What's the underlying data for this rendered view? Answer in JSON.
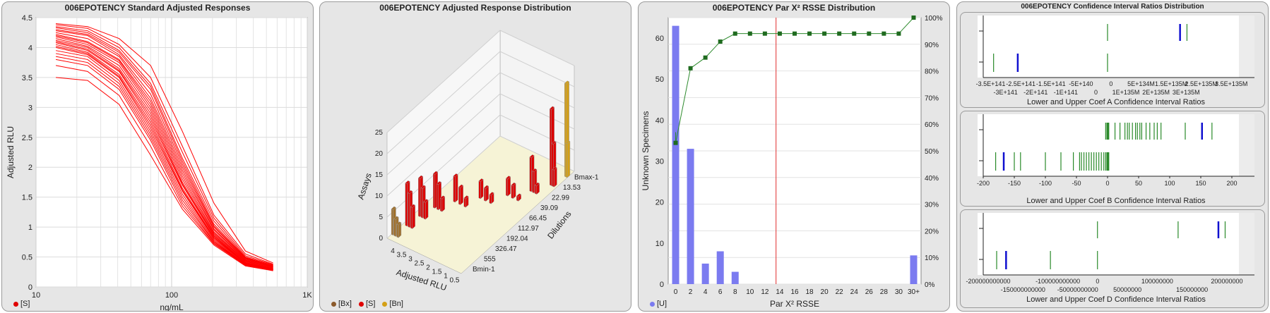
{
  "chart_data": [
    {
      "type": "line",
      "title": "006EPOTENCY Standard Adjusted Responses",
      "xlabel": "ng/mL",
      "ylabel": "Adjusted RLU",
      "xscale": "log",
      "xlim": [
        10,
        1000
      ],
      "ylim": [
        0,
        4.5
      ],
      "x_ticks": [
        "10",
        "100",
        "1K"
      ],
      "y_ticks": [
        "0",
        "0.5",
        "1",
        "1.5",
        "2",
        "2.5",
        "3",
        "3.5",
        "4",
        "4.5"
      ],
      "x": [
        14,
        24,
        41,
        70,
        120,
        205,
        350,
        560
      ],
      "series_color": "#ff0000",
      "legend": [
        "[S]"
      ],
      "series": [
        {
          "values": [
            4.4,
            4.35,
            4.15,
            3.7,
            2.6,
            1.4,
            0.6,
            0.4
          ]
        },
        {
          "values": [
            4.38,
            4.32,
            4.05,
            3.5,
            2.35,
            1.2,
            0.55,
            0.38
          ]
        },
        {
          "values": [
            4.35,
            4.28,
            4.0,
            3.4,
            2.25,
            1.15,
            0.52,
            0.37
          ]
        },
        {
          "values": [
            4.33,
            4.25,
            3.95,
            3.35,
            2.15,
            1.1,
            0.5,
            0.36
          ]
        },
        {
          "values": [
            4.3,
            4.22,
            3.92,
            3.3,
            2.1,
            1.05,
            0.49,
            0.35
          ]
        },
        {
          "values": [
            4.28,
            4.2,
            3.88,
            3.22,
            2.05,
            1.02,
            0.48,
            0.35
          ]
        },
        {
          "values": [
            4.25,
            4.15,
            3.85,
            3.15,
            2.0,
            1.0,
            0.47,
            0.34
          ]
        },
        {
          "values": [
            4.22,
            4.1,
            3.8,
            3.1,
            1.95,
            0.97,
            0.46,
            0.34
          ]
        },
        {
          "values": [
            4.2,
            4.08,
            3.78,
            3.05,
            1.9,
            0.95,
            0.45,
            0.33
          ]
        },
        {
          "values": [
            4.18,
            4.05,
            3.75,
            3.0,
            1.85,
            0.92,
            0.44,
            0.33
          ]
        },
        {
          "values": [
            4.15,
            4.02,
            3.7,
            2.95,
            1.8,
            0.9,
            0.43,
            0.32
          ]
        },
        {
          "values": [
            4.12,
            4.0,
            3.65,
            2.9,
            1.75,
            0.88,
            0.42,
            0.32
          ]
        },
        {
          "values": [
            4.1,
            3.97,
            3.62,
            2.85,
            1.72,
            0.86,
            0.41,
            0.31
          ]
        },
        {
          "values": [
            4.08,
            3.95,
            3.6,
            2.8,
            1.7,
            0.85,
            0.4,
            0.31
          ]
        },
        {
          "values": [
            4.05,
            3.92,
            3.55,
            2.75,
            1.65,
            0.83,
            0.4,
            0.3
          ]
        },
        {
          "values": [
            4.02,
            3.9,
            3.52,
            2.7,
            1.62,
            0.82,
            0.39,
            0.3
          ]
        },
        {
          "values": [
            4.0,
            3.88,
            3.5,
            2.65,
            1.6,
            0.8,
            0.39,
            0.3
          ]
        },
        {
          "values": [
            3.95,
            3.85,
            3.45,
            2.6,
            1.55,
            0.78,
            0.38,
            0.29
          ]
        },
        {
          "values": [
            3.9,
            3.8,
            3.4,
            2.55,
            1.5,
            0.76,
            0.38,
            0.29
          ]
        },
        {
          "values": [
            3.85,
            3.75,
            3.35,
            2.5,
            1.45,
            0.75,
            0.37,
            0.29
          ]
        },
        {
          "values": [
            3.8,
            3.7,
            3.3,
            2.45,
            1.4,
            0.73,
            0.37,
            0.28
          ]
        },
        {
          "values": [
            3.7,
            3.6,
            3.2,
            2.35,
            1.35,
            0.72,
            0.36,
            0.28
          ]
        },
        {
          "values": [
            3.5,
            3.45,
            3.05,
            2.2,
            1.3,
            0.7,
            0.35,
            0.27
          ]
        }
      ]
    },
    {
      "type": "3d-bar",
      "title": "006EPOTENCY Adjusted Response Distribution",
      "xlabel": "Adjusted RLU",
      "ylabel": "Dilutions",
      "zlabel": "Assays",
      "x_ticks": [
        "4",
        "3.5",
        "3",
        "2.5",
        "2",
        "1.5",
        "1",
        "0.5"
      ],
      "y_ticks": [
        "Bmax-1",
        "13.53",
        "22.99",
        "39.09",
        "66.45",
        "112.97",
        "192.04",
        "326.47",
        "555",
        "Bmin-1"
      ],
      "z_ticks": [
        "0",
        "5",
        "10",
        "15",
        "20",
        "25"
      ],
      "legend": [
        "[Bx]",
        "[S]",
        "[Bn]"
      ],
      "legend_colors": [
        "#8b5a2b",
        "#ff0000",
        "#d4a017"
      ],
      "bars": [
        {
          "group": "[Bx]",
          "rlu": 4.35,
          "dil": 0,
          "value": 6
        },
        {
          "group": "[Bx]",
          "rlu": 4.2,
          "dil": 0,
          "value": 4
        },
        {
          "group": "[Bx]",
          "rlu": 4.05,
          "dil": 0,
          "value": 3
        },
        {
          "group": "[S]",
          "rlu": 4.2,
          "dil": 1,
          "value": 10
        },
        {
          "group": "[S]",
          "rlu": 4.05,
          "dil": 1,
          "value": 8
        },
        {
          "group": "[S]",
          "rlu": 3.9,
          "dil": 1,
          "value": 5
        },
        {
          "group": "[S]",
          "rlu": 4.1,
          "dil": 2,
          "value": 9
        },
        {
          "group": "[S]",
          "rlu": 3.95,
          "dil": 2,
          "value": 7
        },
        {
          "group": "[S]",
          "rlu": 3.8,
          "dil": 2,
          "value": 4
        },
        {
          "group": "[S]",
          "rlu": 3.9,
          "dil": 3,
          "value": 8
        },
        {
          "group": "[S]",
          "rlu": 3.7,
          "dil": 3,
          "value": 6
        },
        {
          "group": "[S]",
          "rlu": 3.5,
          "dil": 3,
          "value": 3
        },
        {
          "group": "[S]",
          "rlu": 3.4,
          "dil": 4,
          "value": 6
        },
        {
          "group": "[S]",
          "rlu": 3.1,
          "dil": 4,
          "value": 4
        },
        {
          "group": "[S]",
          "rlu": 2.8,
          "dil": 4,
          "value": 2
        },
        {
          "group": "[S]",
          "rlu": 2.6,
          "dil": 5,
          "value": 4
        },
        {
          "group": "[S]",
          "rlu": 2.3,
          "dil": 5,
          "value": 3
        },
        {
          "group": "[S]",
          "rlu": 2.0,
          "dil": 5,
          "value": 2
        },
        {
          "group": "[S]",
          "rlu": 1.7,
          "dil": 6,
          "value": 4
        },
        {
          "group": "[S]",
          "rlu": 1.4,
          "dil": 6,
          "value": 3
        },
        {
          "group": "[S]",
          "rlu": 1.1,
          "dil": 6,
          "value": 1
        },
        {
          "group": "[S]",
          "rlu": 1.0,
          "dil": 7,
          "value": 8
        },
        {
          "group": "[S]",
          "rlu": 0.85,
          "dil": 7,
          "value": 5
        },
        {
          "group": "[S]",
          "rlu": 0.7,
          "dil": 7,
          "value": 2
        },
        {
          "group": "[S]",
          "rlu": 0.5,
          "dil": 8,
          "value": 18
        },
        {
          "group": "[S]",
          "rlu": 0.4,
          "dil": 8,
          "value": 10
        },
        {
          "group": "[S]",
          "rlu": 0.35,
          "dil": 8,
          "value": 4
        },
        {
          "group": "[Bn]",
          "rlu": 0.3,
          "dil": 9,
          "value": 22
        },
        {
          "group": "[Bn]",
          "rlu": 0.25,
          "dil": 9,
          "value": 8
        }
      ]
    },
    {
      "type": "bar",
      "title": "006EPOTENCY Par X² RSSE Distribution",
      "xlabel": "Par X² RSSE",
      "ylabel": "Unknown Specimens",
      "categories": [
        "0",
        "2",
        "4",
        "6",
        "8",
        "10",
        "12",
        "14",
        "16",
        "18",
        "20",
        "22",
        "24",
        "26",
        "28",
        "30",
        "30+"
      ],
      "values": [
        63,
        33,
        5,
        8,
        3,
        0,
        0,
        0,
        0,
        0,
        0,
        0,
        0,
        0,
        0,
        0,
        7
      ],
      "ylim": [
        0,
        65
      ],
      "y_ticks": [
        "0",
        "10",
        "20",
        "30",
        "40",
        "50",
        "60"
      ],
      "y2_ticks": [
        "0%",
        "10%",
        "20%",
        "30%",
        "40%",
        "50%",
        "60%",
        "70%",
        "80%",
        "90%",
        "100%"
      ],
      "cumulative_percent": [
        53,
        81,
        85,
        91,
        94,
        94,
        94,
        94,
        94,
        94,
        94,
        94,
        94,
        94,
        94,
        94,
        100
      ],
      "reference_line_x": 13.5,
      "bar_color": "#7b7bf0",
      "cumulative_color": "#2e8b2e",
      "reference_color": "#e03030",
      "legend": [
        "[U]"
      ]
    },
    {
      "type": "strip",
      "title": "006EPOTENCY Confidence Interval Ratios Distribution",
      "panels": [
        {
          "xlabel": "Lower and Upper Coef A Confidence Interval Ratios",
          "x_ticks_top": [
            "-3.5E+141",
            "-2.5E+141",
            "-1.5E+141",
            "-5E+140",
            "0",
            "5E+134M",
            "1.5E+135M",
            "2.5E+135M",
            "3.5E+135M"
          ],
          "x_ticks_bottom": [
            "-3E+141",
            "-2E+141",
            "-1E+141",
            "0",
            "1E+135M",
            "2E+135M",
            "3E+135M"
          ],
          "axis": "symlog-split",
          "upper": [
            {
              "v": 0.0,
              "c": "g"
            },
            {
              "v": 2.1,
              "c": "b"
            },
            {
              "v": 2.3,
              "c": "g"
            }
          ],
          "lower": [
            {
              "v": -3.3,
              "c": "g"
            },
            {
              "v": -2.6,
              "c": "b"
            },
            {
              "v": 0.0,
              "c": "g"
            }
          ]
        },
        {
          "xlabel": "Lower and Upper Coef B Confidence Interval Ratios",
          "x_ticks": [
            "-200",
            "-150",
            "-100",
            "-50",
            "0",
            "50",
            "100",
            "150",
            "200"
          ],
          "xlim": [
            -200,
            200
          ],
          "upper": [
            {
              "v": -3,
              "c": "g"
            },
            {
              "v": -1,
              "c": "g"
            },
            {
              "v": 0,
              "c": "g"
            },
            {
              "v": 1,
              "c": "g"
            },
            {
              "v": 2,
              "c": "g"
            },
            {
              "v": 12,
              "c": "g"
            },
            {
              "v": 20,
              "c": "g"
            },
            {
              "v": 28,
              "c": "g"
            },
            {
              "v": 32,
              "c": "g"
            },
            {
              "v": 35,
              "c": "g"
            },
            {
              "v": 40,
              "c": "g"
            },
            {
              "v": 45,
              "c": "g"
            },
            {
              "v": 48,
              "c": "g"
            },
            {
              "v": 52,
              "c": "g"
            },
            {
              "v": 55,
              "c": "g"
            },
            {
              "v": 62,
              "c": "g"
            },
            {
              "v": 68,
              "c": "g"
            },
            {
              "v": 75,
              "c": "g"
            },
            {
              "v": 80,
              "c": "g"
            },
            {
              "v": 86,
              "c": "g"
            },
            {
              "v": 125,
              "c": "g"
            },
            {
              "v": 152,
              "c": "b"
            },
            {
              "v": 168,
              "c": "g"
            }
          ],
          "lower": [
            {
              "v": -180,
              "c": "g"
            },
            {
              "v": -167,
              "c": "b"
            },
            {
              "v": -150,
              "c": "g"
            },
            {
              "v": -140,
              "c": "g"
            },
            {
              "v": -100,
              "c": "g"
            },
            {
              "v": -75,
              "c": "g"
            },
            {
              "v": -55,
              "c": "g"
            },
            {
              "v": -45,
              "c": "g"
            },
            {
              "v": -42,
              "c": "g"
            },
            {
              "v": -38,
              "c": "g"
            },
            {
              "v": -34,
              "c": "g"
            },
            {
              "v": -30,
              "c": "g"
            },
            {
              "v": -26,
              "c": "g"
            },
            {
              "v": -22,
              "c": "g"
            },
            {
              "v": -18,
              "c": "g"
            },
            {
              "v": -14,
              "c": "g"
            },
            {
              "v": -10,
              "c": "g"
            },
            {
              "v": -6,
              "c": "g"
            },
            {
              "v": -3,
              "c": "g"
            },
            {
              "v": -1,
              "c": "g"
            },
            {
              "v": 0,
              "c": "g"
            },
            {
              "v": 1,
              "c": "g"
            },
            {
              "v": 2,
              "c": "g"
            }
          ]
        },
        {
          "xlabel": "Lower and Upper Coef D Confidence Interval Ratios",
          "x_ticks_top": [
            "-200000000000",
            "-100000000000",
            "0",
            "100000000",
            "200000000"
          ],
          "x_ticks_bottom": [
            "-150000000000",
            "-50000000000",
            "50000000",
            "150000000"
          ],
          "axis": "split",
          "upper": [
            {
              "v": 0.0,
              "c": "g"
            },
            {
              "v": 0.6,
              "c": "g"
            },
            {
              "v": 0.9,
              "c": "b"
            },
            {
              "v": 0.95,
              "c": "g"
            }
          ],
          "lower": [
            {
              "v": -0.75,
              "c": "g"
            },
            {
              "v": -0.68,
              "c": "b"
            },
            {
              "v": -0.35,
              "c": "g"
            },
            {
              "v": 0.0,
              "c": "g"
            }
          ]
        }
      ]
    }
  ]
}
